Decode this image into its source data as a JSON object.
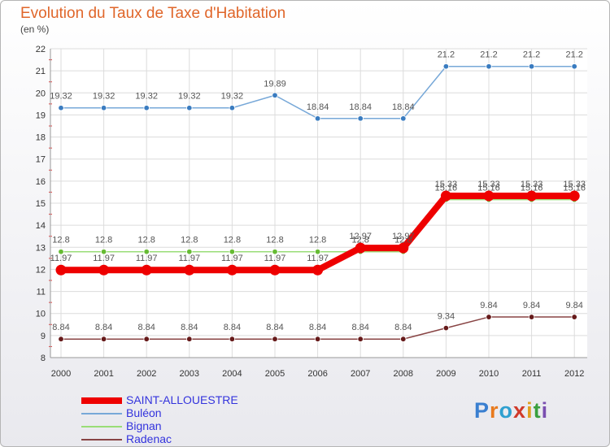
{
  "header": {
    "title": "Evolution du Taux de Taxe d'Habitation",
    "unit": "(en %)"
  },
  "logo": {
    "text": "Proxiti",
    "colors": [
      "#3a7fd0",
      "#e87a1e",
      "#2fa0d0",
      "#d03a2a",
      "#e0a020",
      "#3aa040",
      "#7a4fb0"
    ]
  },
  "chart_data": {
    "type": "line",
    "title": "Evolution du Taux de Taxe d'Habitation",
    "ylabel": "(en %)",
    "xlabel": "",
    "ylim": [
      8,
      22
    ],
    "yticks": [
      "8",
      "9",
      "10",
      "11",
      "12",
      "13",
      "14",
      "15",
      "16",
      "17",
      "18",
      "19",
      "20",
      "21",
      "22"
    ],
    "categories": [
      "2000",
      "2001",
      "2002",
      "2003",
      "2004",
      "2005",
      "2006",
      "2007",
      "2008",
      "2009",
      "2010",
      "2011",
      "2012"
    ],
    "legend_position": "bottom-left",
    "series": [
      {
        "name": "Bignan",
        "color": "#99dd77",
        "marker": "#66bb33",
        "values": [
          12.8,
          12.8,
          12.8,
          12.8,
          12.8,
          12.8,
          12.8,
          12.8,
          12.8,
          15.16,
          15.16,
          15.16,
          15.16
        ],
        "labels": [
          "12.8",
          "12.8",
          "12.8",
          "12.8",
          "12.8",
          "12.8",
          "12.8",
          "12.8",
          "12.8",
          "15.16",
          "15.16",
          "15.16",
          "15.16"
        ]
      },
      {
        "name": "SAINT-ALLOUESTRE",
        "color": "#ee0000",
        "marker": "#ee0000",
        "values": [
          11.97,
          11.97,
          11.97,
          11.97,
          11.97,
          11.97,
          11.97,
          12.97,
          12.97,
          15.33,
          15.33,
          15.33,
          15.33
        ],
        "labels": [
          "11.97",
          "11.97",
          "11.97",
          "11.97",
          "11.97",
          "11.97",
          "11.97",
          "12.97",
          "12.97",
          "15.33",
          "15.33",
          "15.33",
          "15.33"
        ]
      },
      {
        "name": "Buléon",
        "color": "#77a8d8",
        "marker": "#3a7cc0",
        "values": [
          19.32,
          19.32,
          19.32,
          19.32,
          19.32,
          19.89,
          18.84,
          18.84,
          18.84,
          21.2,
          21.2,
          21.2,
          21.2
        ],
        "labels": [
          "19.32",
          "19.32",
          "19.32",
          "19.32",
          "19.32",
          "19.89",
          "18.84",
          "18.84",
          "18.84",
          "21.2",
          "21.2",
          "21.2",
          "21.2"
        ]
      },
      {
        "name": "Radenac",
        "color": "#884444",
        "marker": "#661a1a",
        "values": [
          8.84,
          8.84,
          8.84,
          8.84,
          8.84,
          8.84,
          8.84,
          8.84,
          8.84,
          9.34,
          9.84,
          9.84,
          9.84
        ],
        "labels": [
          "8.84",
          "8.84",
          "8.84",
          "8.84",
          "8.84",
          "8.84",
          "8.84",
          "8.84",
          "8.84",
          "9.34",
          "9.84",
          "9.84",
          "9.84"
        ]
      }
    ],
    "legend": [
      "SAINT-ALLOUESTRE",
      "Buléon",
      "Bignan",
      "Radenac"
    ]
  }
}
